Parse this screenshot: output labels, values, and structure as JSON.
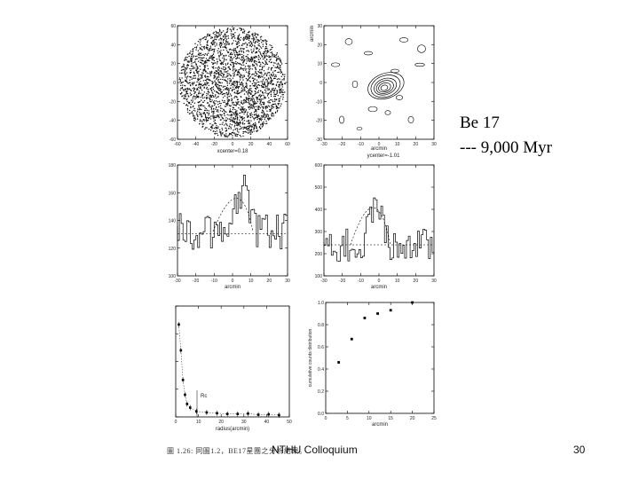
{
  "slide": {
    "title_line1": "Be 17",
    "title_line2": "--- 9,000 Myr",
    "footer_center": "NTHU Colloquium",
    "page_number": "30",
    "figure_caption": "圖 1.26: 同圖1.2，BE17星團之分析結果。"
  },
  "chart_data": [
    {
      "type": "scatter",
      "panel": "star-field",
      "xticks": [
        "-60",
        "-40",
        "-20",
        "0",
        "20",
        "40",
        "60"
      ],
      "yticks": [
        "60",
        "40",
        "20",
        "0",
        "-20",
        "-40",
        "-60"
      ],
      "xlim": [
        -60,
        60
      ],
      "ylim": [
        -60,
        60
      ],
      "annotation": "xcenter=0.18"
    },
    {
      "type": "contour",
      "panel": "density-contour",
      "xticks": [
        "-30",
        "-20",
        "-10",
        "0",
        "10",
        "20",
        "30"
      ],
      "yticks": [
        "30",
        "20",
        "10",
        "0",
        "-10",
        "-20",
        "-30"
      ],
      "ylabel": "arcmin",
      "xlabel": "arcmin",
      "annotation": "ycenter=-1.01"
    },
    {
      "type": "step",
      "panel": "x-histogram",
      "xticks": [
        "-30",
        "-20",
        "-10",
        "0",
        "10",
        "20",
        "30"
      ],
      "yticks": [
        "180",
        "160",
        "140",
        "120",
        "100"
      ],
      "ylim": [
        100,
        180
      ],
      "xlabel": "arcmin"
    },
    {
      "type": "step",
      "panel": "y-histogram",
      "xticks": [
        "-30",
        "-20",
        "-10",
        "0",
        "10",
        "20",
        "30"
      ],
      "yticks": [
        "600",
        "500",
        "400",
        "300",
        "200",
        "100"
      ],
      "ylim": [
        100,
        600
      ],
      "xlabel": "arcmin"
    },
    {
      "type": "scatter",
      "panel": "radial-profile",
      "xticks": [
        "0",
        "10",
        "20",
        "30",
        "40",
        "50"
      ],
      "xlabel": "radius(arcmin)",
      "annotation": "Rc",
      "points": [
        [
          1.5,
          25
        ],
        [
          2.5,
          18
        ],
        [
          3.5,
          10
        ],
        [
          4.5,
          6
        ],
        [
          5.5,
          3.5
        ],
        [
          7,
          2.5
        ],
        [
          10,
          1.5
        ],
        [
          15,
          1.2
        ],
        [
          20,
          1
        ],
        [
          25,
          0.8
        ],
        [
          30,
          0.8
        ],
        [
          35,
          0.9
        ],
        [
          40,
          0.6
        ],
        [
          45,
          0.7
        ],
        [
          50,
          0.5
        ]
      ]
    },
    {
      "type": "scatter",
      "panel": "cumulative-fraction",
      "xticks": [
        "0",
        "5",
        "10",
        "15",
        "20",
        "25"
      ],
      "yticks": [
        "1.0",
        "0.8",
        "0.6",
        "0.4",
        "0.2",
        "0.0"
      ],
      "ylim": [
        0,
        1
      ],
      "xlabel": "arcmin",
      "ylabel": "cumulative counts distribution",
      "points": [
        [
          3,
          0.46
        ],
        [
          6,
          0.67
        ],
        [
          9,
          0.86
        ],
        [
          12,
          0.9
        ],
        [
          15,
          0.93
        ],
        [
          20,
          1.0
        ]
      ]
    }
  ]
}
